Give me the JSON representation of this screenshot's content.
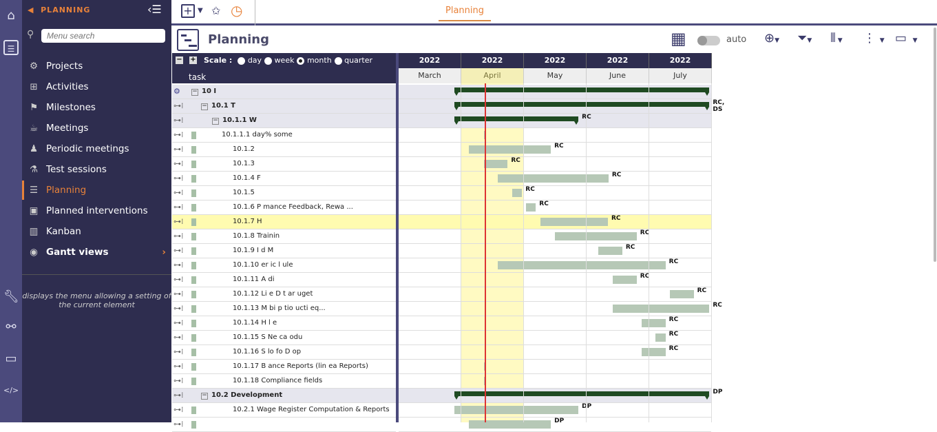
{
  "nav": {
    "section": "PLANNING",
    "search_placeholder": "Menu search",
    "tooltip": "displays the menu allowing a setting of the current element",
    "items": [
      {
        "label": "Projects",
        "icon": "⚙"
      },
      {
        "label": "Activities",
        "icon": "⊞"
      },
      {
        "label": "Milestones",
        "icon": "⚑"
      },
      {
        "label": "Meetings",
        "icon": "☕"
      },
      {
        "label": "Periodic meetings",
        "icon": "♟"
      },
      {
        "label": "Test sessions",
        "icon": "⚗"
      },
      {
        "label": "Planning",
        "icon": "☰",
        "active": true
      },
      {
        "label": "Planned interventions",
        "icon": "▣"
      },
      {
        "label": "Kanban",
        "icon": "▥"
      },
      {
        "label": "Gantt views",
        "icon": "◉",
        "bold": true
      }
    ]
  },
  "topbar": {
    "tab": "Planning"
  },
  "page": {
    "title": "Planning",
    "auto_label": "auto"
  },
  "gantt": {
    "scale_label": "Scale :",
    "scales": [
      "day",
      "week",
      "month",
      "quarter"
    ],
    "selected_scale": "month",
    "task_header": "task",
    "years": [
      "2022",
      "2022",
      "2022",
      "2022",
      "2022"
    ],
    "months": [
      "March",
      "April",
      "May",
      "June",
      "July"
    ],
    "today_month_offset": 1.37,
    "rows": [
      {
        "label": "10 I",
        "level": 0,
        "type": "group",
        "start": 0.89,
        "end": 4.96,
        "res": ""
      },
      {
        "label": "10.1 T",
        "level": 1,
        "type": "group",
        "start": 0.89,
        "end": 4.96,
        "res": "RC, DS"
      },
      {
        "label": "10.1.1 W",
        "level": 2,
        "type": "group",
        "start": 0.89,
        "end": 2.87,
        "res": "RC"
      },
      {
        "label": "10.1.1.1 day% some",
        "level": 4,
        "type": "task",
        "start": 1.36,
        "end": 1.38,
        "res": ""
      },
      {
        "label": "10.1.2",
        "level": 3,
        "type": "task",
        "start": 1.12,
        "end": 2.43,
        "res": "RC"
      },
      {
        "label": "10.1.3 ",
        "level": 3,
        "type": "task",
        "start": 1.36,
        "end": 1.74,
        "res": "RC"
      },
      {
        "label": "10.1.4 F",
        "level": 3,
        "type": "task",
        "start": 1.58,
        "end": 3.35,
        "res": "RC"
      },
      {
        "label": "10.1.5 ",
        "level": 3,
        "type": "task",
        "start": 1.81,
        "end": 1.97,
        "res": "RC"
      },
      {
        "label": "10.1.6 P   mance Feedback, Rewa    ...",
        "level": 3,
        "type": "task",
        "start": 2.03,
        "end": 2.19,
        "res": "RC"
      },
      {
        "label": "10.1.7 H",
        "level": 3,
        "type": "task",
        "start": 2.26,
        "end": 3.34,
        "res": "RC",
        "highlight": true
      },
      {
        "label": "10.1.8 Trainin",
        "level": 3,
        "type": "task",
        "start": 2.49,
        "end": 3.8,
        "res": "RC"
      },
      {
        "label": "10.1.9 I  d M",
        "level": 3,
        "type": "task",
        "start": 3.19,
        "end": 3.57,
        "res": "RC"
      },
      {
        "label": "10.1.10   er  ic  l  ule",
        "level": 3,
        "type": "task",
        "start": 1.58,
        "end": 4.26,
        "res": "RC"
      },
      {
        "label": "10.1.11 A  di",
        "level": 3,
        "type": "task",
        "start": 3.42,
        "end": 3.8,
        "res": "RC"
      },
      {
        "label": "10.1.12 Li  e D   t  ar      uget",
        "level": 3,
        "type": "task",
        "start": 4.33,
        "end": 4.71,
        "res": "RC"
      },
      {
        "label": "10.1.13 M  bi   p    tio   ucti    eq...",
        "level": 3,
        "type": "task",
        "start": 3.42,
        "end": 4.96,
        "res": "RC"
      },
      {
        "label": "10.1.14 H  l  e",
        "level": 3,
        "type": "task",
        "start": 3.88,
        "end": 4.26,
        "res": "RC"
      },
      {
        "label": "10.1.15 S   Ne  ca    odu",
        "level": 3,
        "type": "task",
        "start": 4.1,
        "end": 4.26,
        "res": "RC"
      },
      {
        "label": "10.1.16 S  lo   fo  D    op",
        "level": 3,
        "type": "task",
        "start": 3.88,
        "end": 4.26,
        "res": "RC"
      },
      {
        "label": "10.1.17 B   ance Reports (lin   ea      Reports)",
        "level": 3,
        "type": "task",
        "start": 1.36,
        "end": 1.38,
        "res": ""
      },
      {
        "label": "10.1.18 Compliance fields",
        "level": 3,
        "type": "task",
        "start": 1.36,
        "end": 1.38,
        "res": ""
      },
      {
        "label": "10.2 Development",
        "level": 1,
        "type": "group",
        "start": 0.89,
        "end": 4.96,
        "res": "DP"
      },
      {
        "label": "10.2.1 Wage Register Computation & Reports",
        "level": 3,
        "type": "task",
        "start": 0.89,
        "end": 2.87,
        "res": "DP"
      },
      {
        "label": "",
        "level": 3,
        "type": "task",
        "start": 1.12,
        "end": 2.43,
        "res": "DP"
      }
    ]
  },
  "colors": {
    "accent": "#e8823a",
    "navy": "#2e2d4f",
    "bar": "#b6c8b6",
    "summary": "#1f4a22",
    "today": "#dd3333"
  }
}
